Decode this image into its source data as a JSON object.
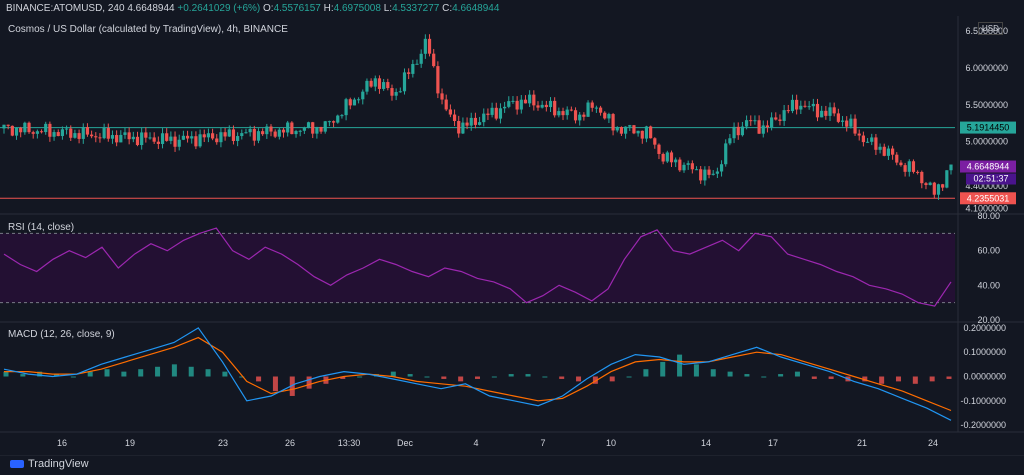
{
  "header": {
    "symbol": "BINANCE:ATOMUSD, 240",
    "last": "4.6648944",
    "change": "+0.2641029 (+6%)",
    "o_label": "O:",
    "o": "4.5576157",
    "h_label": "H:",
    "h": "4.6975008",
    "l_label": "L:",
    "l": "4.5337277",
    "c_label": "C:",
    "c": "4.6648944"
  },
  "title": "Cosmos / US Dollar (calculated by TradingView), 4h, BINANCE",
  "currency_label": "USD",
  "footer_brand": "TradingView",
  "colors": {
    "up": "#26a69a",
    "down": "#ef5350",
    "rsi": "#9c27b0",
    "macd": "#2196f3",
    "signal": "#ff6d00",
    "bg": "#131722"
  },
  "chart_data": [
    {
      "type": "candlestick",
      "title": "Cosmos / US Dollar (calculated by TradingView), 4h, BINANCE",
      "x_ticks": [
        "16",
        "19",
        "23",
        "26",
        "13:30",
        "Dec",
        "4",
        "7",
        "10",
        "14",
        "17",
        "21",
        "24"
      ],
      "y_ticks": [
        6.5,
        6.0,
        5.5,
        5.0,
        4.4,
        4.1
      ],
      "y_tick_labels": [
        "6.5000000",
        "6.0000000",
        "5.5000000",
        "5.0000000",
        "4.4000000",
        "4.1000000"
      ],
      "ylim": [
        4.05,
        6.7
      ],
      "close_path": [
        [
          0,
          5.18
        ],
        [
          6,
          5.08
        ],
        [
          10,
          5.02
        ],
        [
          14,
          5.1
        ],
        [
          19,
          5.2
        ],
        [
          22,
          5.85
        ],
        [
          23,
          5.62
        ],
        [
          24,
          5.95
        ],
        [
          25,
          6.35
        ],
        [
          26,
          5.45
        ],
        [
          27,
          5.18
        ],
        [
          28,
          5.3
        ],
        [
          29,
          5.4
        ],
        [
          30,
          5.52
        ],
        [
          31,
          5.55
        ],
        [
          32,
          5.48
        ],
        [
          33,
          5.4
        ],
        [
          34,
          5.35
        ],
        [
          35,
          5.5
        ],
        [
          36,
          5.2
        ],
        [
          37,
          5.16
        ],
        [
          38,
          5.12
        ],
        [
          39,
          4.78
        ],
        [
          40,
          4.7
        ],
        [
          41,
          4.6
        ],
        [
          42,
          4.52
        ],
        [
          43,
          5.1
        ],
        [
          44,
          5.28
        ],
        [
          45,
          5.18
        ],
        [
          46,
          5.38
        ],
        [
          47,
          5.52
        ],
        [
          48,
          5.42
        ],
        [
          49,
          5.38
        ],
        [
          50,
          5.22
        ],
        [
          51,
          5.0
        ],
        [
          52,
          4.9
        ],
        [
          53,
          4.7
        ],
        [
          54,
          4.58
        ],
        [
          55,
          4.3
        ],
        [
          56,
          4.66
        ]
      ],
      "levels": [
        {
          "value": 5.191445,
          "label": "5.1914450",
          "color": "#26a69a"
        },
        {
          "value": 4.2355031,
          "label": "4.2355031",
          "color": "#ef5350"
        }
      ],
      "price_tags": [
        {
          "value": 4.6648944,
          "label": "4.6648944",
          "timer": "02:51:37",
          "color": "#7b1fa2"
        }
      ]
    },
    {
      "type": "line",
      "name": "RSI",
      "title": "RSI (14, close)",
      "ylim": [
        20,
        80
      ],
      "y_ticks": [
        80,
        60,
        40,
        20
      ],
      "y_tick_labels": [
        "80.00",
        "60.00",
        "40.00",
        "20.00"
      ],
      "bands": [
        30,
        70
      ],
      "values": [
        58,
        52,
        48,
        55,
        60,
        56,
        62,
        50,
        58,
        64,
        60,
        66,
        70,
        73,
        60,
        55,
        62,
        58,
        52,
        45,
        40,
        46,
        50,
        55,
        52,
        48,
        45,
        50,
        48,
        44,
        42,
        38,
        30,
        34,
        40,
        36,
        31,
        38,
        55,
        68,
        72,
        60,
        58,
        62,
        66,
        60,
        70,
        68,
        58,
        55,
        52,
        48,
        45,
        40,
        38,
        35,
        30,
        28,
        42
      ]
    },
    {
      "type": "bar+line",
      "name": "MACD",
      "title": "MACD (12, 26, close, 9)",
      "ylim": [
        -0.22,
        0.22
      ],
      "y_ticks": [
        0.2,
        0.1,
        0,
        -0.1,
        -0.2
      ],
      "y_tick_labels": [
        "0.2000000",
        "0.1000000",
        "0.0000000",
        "-0.1000000",
        "-0.2000000"
      ],
      "histogram": [
        0.02,
        0.01,
        0.02,
        0.01,
        0.0,
        0.02,
        0.03,
        0.02,
        0.03,
        0.04,
        0.05,
        0.04,
        0.03,
        0.02,
        0.0,
        -0.02,
        -0.06,
        -0.08,
        -0.05,
        -0.03,
        -0.01,
        0.0,
        0.01,
        0.02,
        0.01,
        0.0,
        -0.01,
        -0.02,
        -0.01,
        0.0,
        0.01,
        0.01,
        0.0,
        -0.01,
        -0.02,
        -0.03,
        -0.02,
        0.0,
        0.03,
        0.06,
        0.09,
        0.05,
        0.03,
        0.02,
        0.01,
        0.0,
        0.01,
        0.02,
        -0.01,
        -0.01,
        -0.02,
        -0.02,
        -0.03,
        -0.02,
        -0.03,
        -0.02,
        -0.01
      ],
      "macd": [
        0.03,
        0.01,
        0.0,
        0.01,
        0.05,
        0.08,
        0.11,
        0.14,
        0.2,
        0.06,
        -0.1,
        -0.08,
        -0.03,
        0.0,
        0.02,
        0.01,
        -0.01,
        -0.03,
        -0.05,
        -0.03,
        -0.08,
        -0.1,
        -0.12,
        -0.08,
        -0.01,
        0.05,
        0.09,
        0.08,
        0.05,
        0.06,
        0.09,
        0.12,
        0.08,
        0.05,
        0.02,
        -0.02,
        -0.05,
        -0.09,
        -0.13,
        -0.18
      ],
      "signal": [
        0.02,
        0.02,
        0.01,
        0.01,
        0.03,
        0.06,
        0.09,
        0.12,
        0.16,
        0.1,
        -0.02,
        -0.07,
        -0.05,
        -0.02,
        0.0,
        0.01,
        0.0,
        -0.02,
        -0.03,
        -0.04,
        -0.06,
        -0.08,
        -0.1,
        -0.09,
        -0.04,
        0.02,
        0.06,
        0.07,
        0.06,
        0.06,
        0.08,
        0.1,
        0.09,
        0.06,
        0.03,
        0.0,
        -0.03,
        -0.06,
        -0.1,
        -0.14
      ]
    }
  ]
}
